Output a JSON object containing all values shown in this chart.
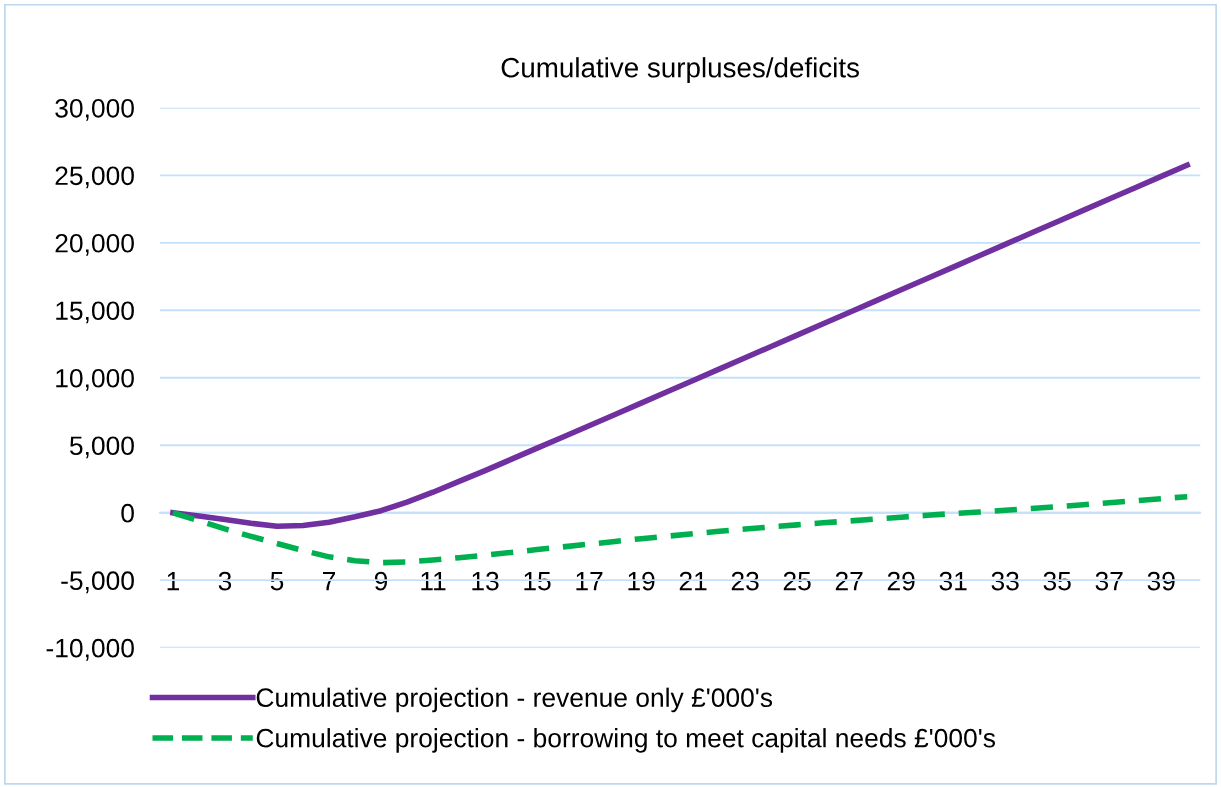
{
  "chart_data": {
    "type": "line",
    "title": "Cumulative surpluses/deficits",
    "categories": [
      "1",
      null,
      "3",
      null,
      "5",
      null,
      "7",
      null,
      "9",
      null,
      "11",
      null,
      "13",
      null,
      "15",
      null,
      "17",
      null,
      "19",
      null,
      "21",
      null,
      "23",
      null,
      "25",
      null,
      "27",
      null,
      "29",
      null,
      "31",
      null,
      "33",
      null,
      "35",
      null,
      "37",
      null,
      "39",
      null
    ],
    "series": [
      {
        "name": "Cumulative projection - revenue only £'000's",
        "color": "#7030a0",
        "line_style": "solid",
        "values": [
          0,
          -250,
          -500,
          -780,
          -1000,
          -950,
          -700,
          -300,
          150,
          780,
          1520,
          2320,
          3120,
          3950,
          4790,
          5610,
          6440,
          7280,
          8120,
          8960,
          9800,
          10640,
          11480,
          12320,
          13160,
          14000,
          14840,
          15680,
          16520,
          17360,
          18200,
          19040,
          19880,
          20720,
          21560,
          22400,
          23240,
          24080,
          24920,
          25760
        ]
      },
      {
        "name": "Cumulative projection - borrowing to meet capital needs £'000's",
        "color": "#00b050",
        "line_style": "dashed",
        "values": [
          0,
          -600,
          -1200,
          -1750,
          -2280,
          -2800,
          -3270,
          -3550,
          -3700,
          -3650,
          -3500,
          -3330,
          -3150,
          -2940,
          -2730,
          -2530,
          -2330,
          -2130,
          -1920,
          -1740,
          -1560,
          -1380,
          -1210,
          -1050,
          -900,
          -750,
          -610,
          -470,
          -330,
          -190,
          -60,
          50,
          180,
          310,
          450,
          590,
          740,
          890,
          1040,
          1190
        ]
      }
    ],
    "ylim": [
      -10000,
      30000
    ],
    "yticks": [
      {
        "value": -10000,
        "label": "-10,000"
      },
      {
        "value": -5000,
        "label": "-5,000"
      },
      {
        "value": 0,
        "label": "0"
      },
      {
        "value": 5000,
        "label": "5,000"
      },
      {
        "value": 10000,
        "label": "10,000"
      },
      {
        "value": 15000,
        "label": "15,000"
      },
      {
        "value": 20000,
        "label": "20,000"
      },
      {
        "value": 25000,
        "label": "25,000"
      },
      {
        "value": 30000,
        "label": "30,000"
      }
    ],
    "grid": "y",
    "legend": "bottom",
    "marker": "none"
  }
}
